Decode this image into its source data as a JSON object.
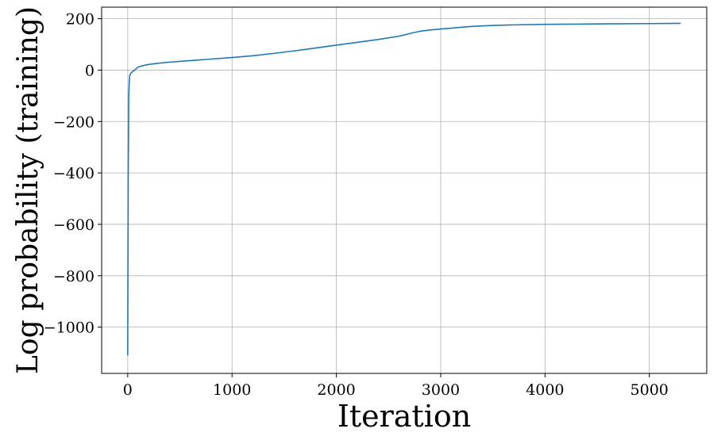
{
  "chart_data": {
    "type": "line",
    "title": "",
    "xlabel": "Iteration",
    "ylabel": "Log probability (training)",
    "xlim": [
      -250,
      5550
    ],
    "ylim": [
      -1180,
      245
    ],
    "xticks": [
      0,
      1000,
      2000,
      3000,
      4000,
      5000
    ],
    "xtick_labels": [
      "0",
      "1000",
      "2000",
      "3000",
      "4000",
      "5000"
    ],
    "yticks": [
      -1000,
      -800,
      -600,
      -400,
      -200,
      0,
      200
    ],
    "ytick_labels": [
      "−1000",
      "−800",
      "−600",
      "−400",
      "−200",
      "0",
      "200"
    ],
    "grid": true,
    "line_color": "#1f77b4",
    "series": [
      {
        "x": [
          0,
          2,
          5,
          10,
          15,
          20,
          30,
          40,
          60,
          80,
          100,
          150,
          200,
          300,
          400,
          500,
          600,
          800,
          1000,
          1200,
          1400,
          1600,
          1800,
          2000,
          2200,
          2400,
          2600,
          2700,
          2800,
          2900,
          3000,
          3100,
          3200,
          3300,
          3400,
          3500,
          3700,
          4000,
          4300,
          4600,
          5000,
          5300
        ],
        "y": [
          -1110,
          -800,
          -400,
          -100,
          -40,
          -20,
          -12,
          -8,
          -2,
          5,
          12,
          18,
          22,
          27,
          31,
          34,
          37,
          43,
          49,
          56,
          65,
          75,
          86,
          97,
          108,
          119,
          132,
          142,
          151,
          156,
          160,
          163,
          167,
          170,
          172,
          174,
          176,
          178,
          179,
          180,
          181,
          182
        ]
      }
    ]
  }
}
